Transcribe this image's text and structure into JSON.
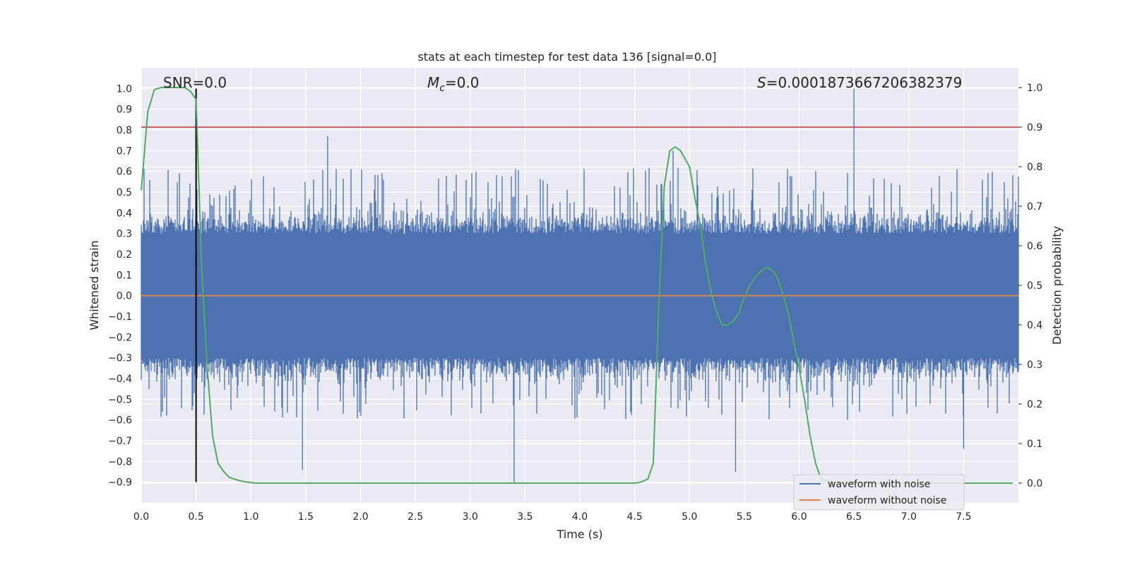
{
  "chart_data": {
    "type": "line",
    "title": "stats at each timestep for test data 136 [signal=0.0]",
    "xlabel": "Time (s)",
    "ylabel_left": "Whitened strain",
    "ylabel_right": "Detection probability",
    "xlim": [
      0.0,
      8.0
    ],
    "ylim_left": [
      -1.0,
      1.1
    ],
    "ylim_right": [
      -0.05,
      1.05
    ],
    "x_ticks": [
      0.0,
      0.5,
      1.0,
      1.5,
      2.0,
      2.5,
      3.0,
      3.5,
      4.0,
      4.5,
      5.0,
      5.5,
      6.0,
      6.5,
      7.0,
      7.5
    ],
    "x_tick_labels": [
      "0.0",
      "0.5",
      "1.0",
      "1.5",
      "2.0",
      "2.5",
      "3.0",
      "3.5",
      "4.0",
      "4.5",
      "5.0",
      "5.5",
      "6.0",
      "6.5",
      "7.0",
      "7.5"
    ],
    "y_left_ticks": [
      1.0,
      0.9,
      0.8,
      0.7,
      0.6,
      0.5,
      0.4,
      0.3,
      0.2,
      0.1,
      0.0,
      -0.1,
      -0.2,
      -0.3,
      -0.4,
      -0.5,
      -0.6,
      -0.7,
      -0.8,
      -0.9
    ],
    "y_left_tick_labels": [
      "1.0",
      "0.9",
      "0.8",
      "0.7",
      "0.6",
      "0.5",
      "0.4",
      "0.3",
      "0.2",
      "0.1",
      "0.0",
      "−0.1",
      "−0.2",
      "−0.3",
      "−0.4",
      "−0.5",
      "−0.6",
      "−0.7",
      "−0.8",
      "−0.9"
    ],
    "y_right_ticks": [
      1.0,
      0.9,
      0.8,
      0.7,
      0.6,
      0.5,
      0.4,
      0.3,
      0.2,
      0.1,
      0.0
    ],
    "y_right_tick_labels": [
      "1.0",
      "0.9",
      "0.8",
      "0.7",
      "0.6",
      "0.5",
      "0.4",
      "0.3",
      "0.2",
      "0.1",
      "0.0"
    ],
    "grid": true,
    "annotations": {
      "snr": "SNR=0.0",
      "mc_prefix": "M",
      "mc_sub": "c",
      "mc_suffix": "=0.0",
      "s_prefix": "S",
      "s_suffix": "=0.0001873667206382379"
    },
    "legend": {
      "location": "lower right",
      "entries": [
        {
          "label": "waveform with noise",
          "color": "#4c72b0"
        },
        {
          "label": "waveform without noise",
          "color": "#dd8452"
        }
      ]
    },
    "noisy_waveform": {
      "name": "waveform with noise",
      "color": "#4c72b0",
      "x_range": [
        0.0,
        8.0
      ],
      "typical_envelope": 0.3,
      "upper_peak_level": 0.5,
      "lower_peak_level": -0.45,
      "peaks": [
        {
          "x": 0.5,
          "y": 0.9
        },
        {
          "x": 1.7,
          "y": 0.77
        },
        {
          "x": 3.4,
          "y": -0.9
        },
        {
          "x": 1.47,
          "y": -0.84
        },
        {
          "x": 4.85,
          "y": 0.7
        },
        {
          "x": 6.5,
          "y": 1.0
        },
        {
          "x": 5.42,
          "y": -0.85
        },
        {
          "x": 7.5,
          "y": -0.74
        }
      ]
    },
    "clean_waveform": {
      "name": "waveform without noise",
      "color": "#dd8452",
      "x": [
        0.0,
        8.0
      ],
      "y": [
        0.0,
        0.0
      ]
    },
    "detection_probability": {
      "name": "Detection probability",
      "color": "#55a868",
      "x": [
        0.0,
        0.06,
        0.12,
        0.18,
        0.25,
        0.32,
        0.4,
        0.45,
        0.5,
        0.55,
        0.6,
        0.65,
        0.7,
        0.75,
        0.8,
        0.85,
        0.9,
        0.95,
        1.0,
        1.05,
        1.2,
        1.5,
        2.0,
        3.0,
        4.0,
        4.5,
        4.55,
        4.62,
        4.67,
        4.72,
        4.77,
        4.82,
        4.87,
        4.92,
        4.96,
        5.0,
        5.05,
        5.1,
        5.15,
        5.2,
        5.25,
        5.3,
        5.35,
        5.4,
        5.45,
        5.5,
        5.55,
        5.6,
        5.65,
        5.7,
        5.75,
        5.8,
        5.85,
        5.9,
        5.95,
        6.0,
        6.05,
        6.1,
        6.15,
        6.2,
        6.3,
        6.5,
        7.0,
        7.5,
        7.95
      ],
      "y": [
        0.74,
        0.94,
        0.995,
        1.0,
        1.0,
        1.0,
        1.0,
        0.99,
        0.97,
        0.55,
        0.3,
        0.12,
        0.05,
        0.03,
        0.015,
        0.01,
        0.006,
        0.003,
        0.001,
        0.0,
        0.0,
        0.0,
        0.0,
        0.0,
        0.0,
        0.0,
        0.002,
        0.01,
        0.05,
        0.45,
        0.75,
        0.84,
        0.85,
        0.84,
        0.82,
        0.8,
        0.72,
        0.65,
        0.55,
        0.48,
        0.43,
        0.4,
        0.4,
        0.41,
        0.43,
        0.47,
        0.5,
        0.52,
        0.535,
        0.545,
        0.54,
        0.52,
        0.48,
        0.43,
        0.36,
        0.29,
        0.21,
        0.12,
        0.05,
        0.01,
        0.0,
        0.0,
        0.0,
        0.0,
        0.0
      ]
    },
    "threshold_line": {
      "name": "detection threshold",
      "color": "#c44e52",
      "y_right": 0.9,
      "x_range": [
        0.0,
        8.0
      ]
    },
    "marker_line": {
      "name": "time marker",
      "color": "#000000",
      "x": 0.5,
      "y_range_left": [
        -0.9,
        1.0
      ]
    }
  }
}
